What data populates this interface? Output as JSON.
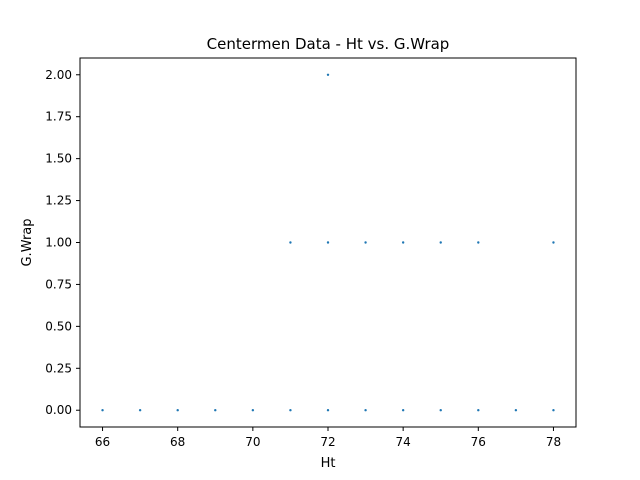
{
  "chart_data": {
    "type": "scatter",
    "title": "Centermen Data - Ht vs. G.Wrap",
    "xlabel": "Ht",
    "ylabel": "G.Wrap",
    "xlim": [
      65.4,
      78.6
    ],
    "ylim": [
      -0.1,
      2.1
    ],
    "xticks": [
      66,
      68,
      70,
      72,
      74,
      76,
      78
    ],
    "yticks": [
      0.0,
      0.25,
      0.5,
      0.75,
      1.0,
      1.25,
      1.5,
      1.75,
      2.0
    ],
    "x_tick_labels": [
      "66",
      "68",
      "70",
      "72",
      "74",
      "76",
      "78"
    ],
    "y_tick_labels": [
      "0.00",
      "0.25",
      "0.50",
      "0.75",
      "1.00",
      "1.25",
      "1.50",
      "1.75",
      "2.00"
    ],
    "grid": false,
    "marker_color": "#1f77b4",
    "points": [
      {
        "x": 66,
        "y": 0
      },
      {
        "x": 67,
        "y": 0
      },
      {
        "x": 68,
        "y": 0
      },
      {
        "x": 69,
        "y": 0
      },
      {
        "x": 70,
        "y": 0
      },
      {
        "x": 71,
        "y": 0
      },
      {
        "x": 72,
        "y": 0
      },
      {
        "x": 73,
        "y": 0
      },
      {
        "x": 74,
        "y": 0
      },
      {
        "x": 75,
        "y": 0
      },
      {
        "x": 76,
        "y": 0
      },
      {
        "x": 77,
        "y": 0
      },
      {
        "x": 78,
        "y": 0
      },
      {
        "x": 71,
        "y": 1
      },
      {
        "x": 72,
        "y": 1
      },
      {
        "x": 73,
        "y": 1
      },
      {
        "x": 74,
        "y": 1
      },
      {
        "x": 75,
        "y": 1
      },
      {
        "x": 76,
        "y": 1
      },
      {
        "x": 78,
        "y": 1
      },
      {
        "x": 72,
        "y": 2
      }
    ]
  }
}
